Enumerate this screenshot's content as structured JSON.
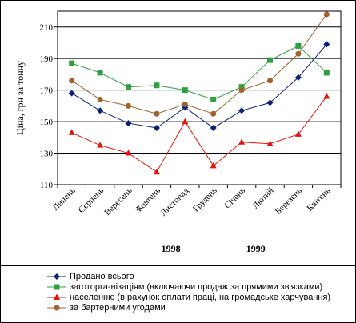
{
  "chart_data": {
    "type": "line",
    "categories": [
      "Липень",
      "Серпень",
      "Вересень",
      "Жовтень",
      "Листопад",
      "Грудень",
      "Січень",
      "Лютий",
      "Березень",
      "Квітень"
    ],
    "year_labels": [
      "1998",
      "1999"
    ],
    "ylabel": "Ціна, грн за тонну",
    "ylim": [
      110,
      220
    ],
    "yticks": [
      110,
      130,
      150,
      170,
      190,
      210
    ],
    "grid": "horizontal",
    "legend_position": "bottom",
    "series": [
      {
        "name": "Продано всього",
        "color": "#0a1f7a",
        "marker": "diamond",
        "values": [
          168,
          157,
          149,
          146,
          159,
          146,
          157,
          162,
          178,
          199
        ]
      },
      {
        "name": "заготорга-нізаціям (включаючи продаж за прямими зв'язками)",
        "color": "#2ea043",
        "marker": "square",
        "values": [
          187,
          181,
          172,
          173,
          170,
          164,
          172,
          189,
          198,
          181
        ]
      },
      {
        "name": "населенню (в рахунок оплати праці, на громадське харчування)",
        "color": "#e8120c",
        "marker": "triangle",
        "values": [
          143,
          135,
          130,
          118,
          150,
          122,
          137,
          136,
          142,
          166
        ]
      },
      {
        "name": "за бартерними угодами",
        "color": "#a0622d",
        "marker": "circle",
        "values": [
          176,
          164,
          160,
          155,
          161,
          155,
          170,
          176,
          193,
          218
        ]
      }
    ]
  }
}
